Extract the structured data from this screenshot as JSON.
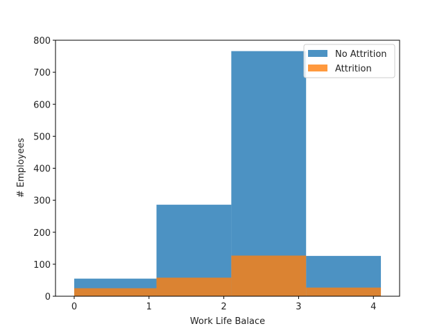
{
  "chart_data": {
    "type": "bar",
    "subtype": "overlapping-histogram",
    "title": "",
    "xlabel": "Work Life Balace",
    "ylabel": "# Employees",
    "xlim": [
      -0.25,
      4.35
    ],
    "ylim": [
      0,
      800
    ],
    "xticks": [
      "0",
      "1",
      "2",
      "3",
      "4"
    ],
    "yticks": [
      "0",
      "100",
      "200",
      "300",
      "400",
      "500",
      "600",
      "700",
      "800"
    ],
    "bins": [
      [
        0,
        1.1
      ],
      [
        1.1,
        2.1
      ],
      [
        2.1,
        3.1
      ],
      [
        3.1,
        4.1
      ]
    ],
    "series": [
      {
        "name": "No Attrition",
        "color": "#1f77b4",
        "alpha": 0.8,
        "values": [
          55,
          286,
          766,
          126
        ]
      },
      {
        "name": "Attrition",
        "color": "#ff7f0e",
        "alpha": 0.8,
        "values": [
          25,
          58,
          127,
          27
        ]
      }
    ],
    "legend_position": "top-right",
    "grid": false
  }
}
